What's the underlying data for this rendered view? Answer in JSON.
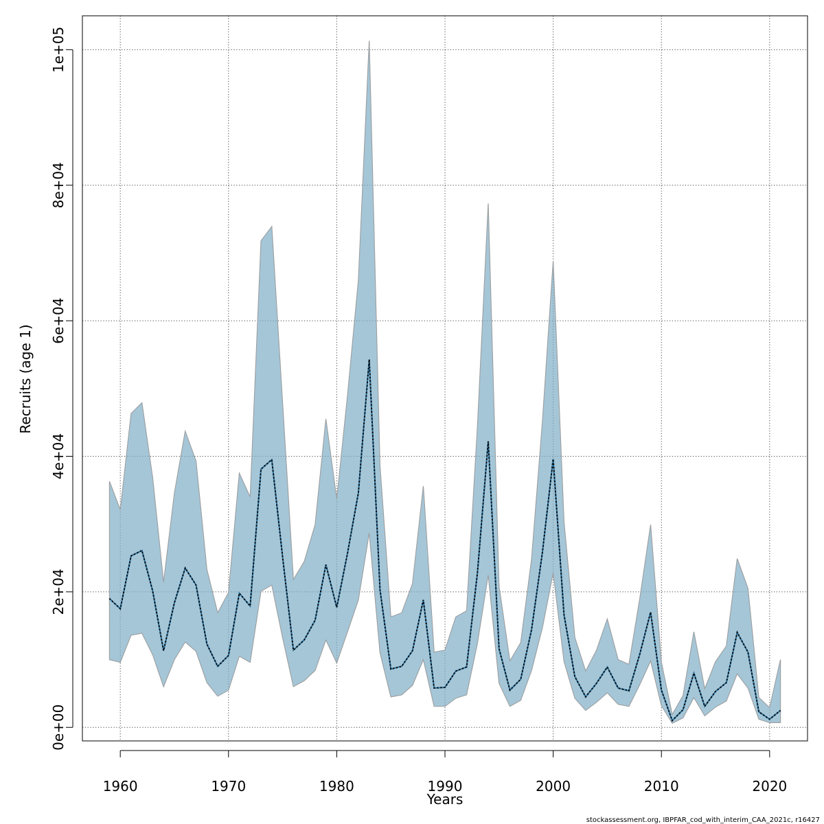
{
  "chart_data": {
    "type": "area",
    "title": "",
    "xlabel": "Years",
    "ylabel": "Recruits (age 1)",
    "xlim": [
      1956.5,
      2023.5
    ],
    "ylim": [
      -2000,
      105000
    ],
    "x_ticks": [
      1960,
      1970,
      1980,
      1990,
      2000,
      2010,
      2020
    ],
    "x_tick_labels": [
      "1960",
      "1970",
      "1980",
      "1990",
      "2000",
      "2010",
      "2020"
    ],
    "y_ticks": [
      0,
      20000,
      40000,
      60000,
      80000,
      100000
    ],
    "y_tick_labels": [
      "0e+00",
      "2e+04",
      "4e+04",
      "6e+04",
      "8e+04",
      "1e+05"
    ],
    "grid": true,
    "x": [
      1959,
      1960,
      1961,
      1962,
      1963,
      1964,
      1965,
      1966,
      1967,
      1968,
      1969,
      1970,
      1971,
      1972,
      1973,
      1974,
      1975,
      1976,
      1977,
      1978,
      1979,
      1980,
      1981,
      1982,
      1983,
      1984,
      1985,
      1986,
      1987,
      1988,
      1989,
      1990,
      1991,
      1992,
      1993,
      1994,
      1995,
      1996,
      1997,
      1998,
      1999,
      2000,
      2001,
      2002,
      2003,
      2004,
      2005,
      2006,
      2007,
      2008,
      2009,
      2010,
      2011,
      2012,
      2013,
      2014,
      2015,
      2016,
      2017,
      2018,
      2019,
      2020,
      2021
    ],
    "series": [
      {
        "kind": "band",
        "fill": "#5b97b8",
        "edge": "#999999",
        "upper": [
          36300,
          32100,
          46300,
          47900,
          36800,
          21400,
          34600,
          43700,
          39300,
          23300,
          16900,
          19900,
          37500,
          34000,
          71800,
          73900,
          47800,
          21800,
          24500,
          29900,
          45500,
          33700,
          49000,
          66000,
          101300,
          38600,
          16300,
          16900,
          21200,
          35600,
          11100,
          11400,
          16300,
          17200,
          44400,
          77300,
          20800,
          9800,
          12500,
          24800,
          45100,
          68800,
          30300,
          13300,
          8300,
          11400,
          16000,
          10000,
          9300,
          19000,
          29900,
          9600,
          1900,
          4700,
          14100,
          5700,
          9700,
          12000,
          24900,
          20500,
          4400,
          2900,
          10000
        ]
      },
      {
        "kind": "band_lower",
        "lower": [
          10000,
          9600,
          13600,
          13900,
          10700,
          6000,
          10000,
          12600,
          11200,
          6600,
          4600,
          5500,
          10500,
          9600,
          20100,
          21000,
          13200,
          6000,
          6900,
          8400,
          12900,
          9500,
          14100,
          18800,
          28700,
          11000,
          4500,
          4800,
          6200,
          10000,
          3100,
          3100,
          4300,
          4800,
          12400,
          22500,
          6500,
          3100,
          4000,
          8400,
          14700,
          22800,
          9700,
          4300,
          2500,
          3700,
          5100,
          3400,
          3100,
          6300,
          9800,
          3200,
          600,
          1400,
          4400,
          1700,
          3000,
          3900,
          7900,
          5800,
          1200,
          700,
          700
        ]
      },
      {
        "name": "",
        "kind": "line",
        "stroke": "#000000",
        "values": [
          19000,
          17500,
          25300,
          26100,
          20100,
          11300,
          18400,
          23500,
          21000,
          12300,
          9000,
          10600,
          19800,
          17900,
          38100,
          39500,
          25100,
          11400,
          12900,
          15800,
          24000,
          17700,
          25700,
          34600,
          54300,
          20300,
          8600,
          9000,
          11300,
          18800,
          5800,
          5900,
          8300,
          8900,
          22800,
          42200,
          11600,
          5500,
          7100,
          14400,
          25800,
          39600,
          16600,
          7500,
          4500,
          6500,
          8900,
          5800,
          5400,
          10800,
          17000,
          5500,
          1000,
          2600,
          8000,
          3100,
          5300,
          6600,
          14000,
          11100,
          2300,
          1200,
          2500
        ]
      }
    ]
  },
  "footer": {
    "source": "stockassessment.org, IBPFAR_cod_with_interim_CAA_2021c, r16427"
  }
}
